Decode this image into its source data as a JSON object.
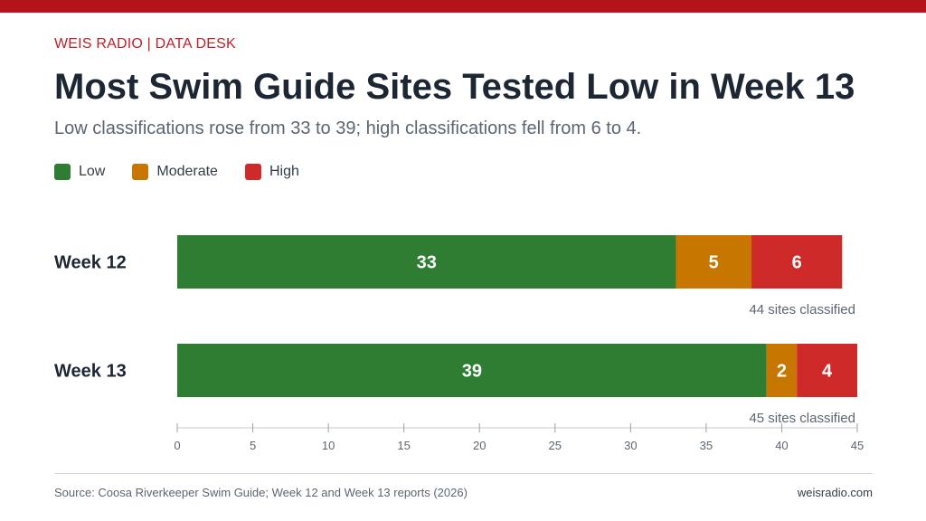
{
  "header": {
    "kicker": "WEIS RADIO | DATA DESK",
    "title": "Most Swim Guide Sites Tested Low in Week 13",
    "subtitle": "Low classifications rose from 33 to 39; high classifications fell from 6 to 4."
  },
  "colors": {
    "accent": "#b5121b",
    "low": "#2e7d32",
    "moderate": "#c77700",
    "high": "#cf2a2a"
  },
  "chart_data": {
    "type": "bar",
    "orientation": "horizontal",
    "stacked": true,
    "categories": [
      "Week 12",
      "Week 13"
    ],
    "series": [
      {
        "name": "Low",
        "values": [
          33,
          39
        ]
      },
      {
        "name": "Moderate",
        "values": [
          5,
          2
        ]
      },
      {
        "name": "High",
        "values": [
          6,
          4
        ]
      }
    ],
    "totals_labels": [
      "44 sites classified",
      "45 sites classified"
    ],
    "xlim": [
      0,
      45
    ],
    "xticks": [
      0,
      5,
      10,
      15,
      20,
      25,
      30,
      35,
      40,
      45
    ],
    "legend": "top-left",
    "grid": false
  },
  "footer": {
    "source": "Source: Coosa Riverkeeper Swim Guide; Week 12 and Week 13 reports (2026)",
    "site": "weisradio.com"
  }
}
